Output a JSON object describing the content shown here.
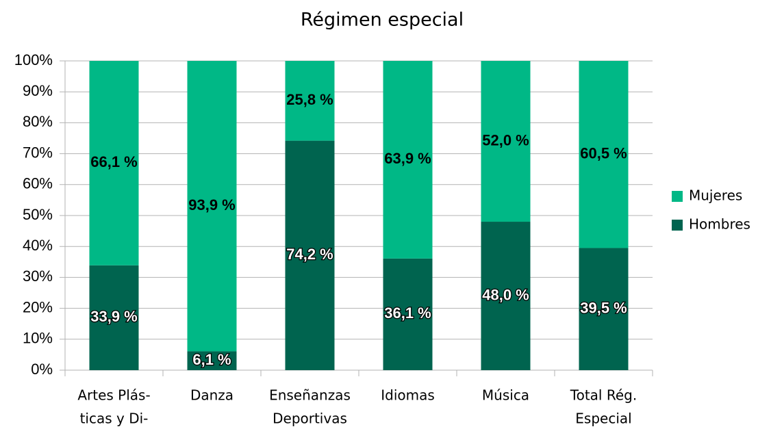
{
  "chart_data": {
    "type": "stacked_bar",
    "title": "Régimen especial",
    "categories": [
      [
        "Artes Plás-",
        "ticas y Di-"
      ],
      [
        "Danza"
      ],
      [
        "Enseñanzas",
        "Deportivas"
      ],
      [
        "Idiomas"
      ],
      [
        "Música"
      ],
      [
        "Total Rég.",
        "Especial"
      ]
    ],
    "series": [
      {
        "name": "Hombres",
        "color": "#00644f",
        "values": [
          33.9,
          6.1,
          74.2,
          36.1,
          48.0,
          39.5
        ],
        "value_labels": [
          "33,9 %",
          "6,1 %",
          "74,2 %",
          "36,1 %",
          "48,0 %",
          "39,5 %"
        ]
      },
      {
        "name": "Mujeres",
        "color": "#00b886",
        "values": [
          66.1,
          93.9,
          25.8,
          63.9,
          52.0,
          60.5
        ],
        "value_labels": [
          "66,1 %",
          "93,9 %",
          "25,8 %",
          "63,9 %",
          "52,0 %",
          "60,5 %"
        ]
      }
    ],
    "ylim": [
      0,
      100
    ],
    "yticks": [
      {
        "value": 0,
        "label": "0%"
      },
      {
        "value": 10,
        "label": "10%"
      },
      {
        "value": 20,
        "label": "20%"
      },
      {
        "value": 30,
        "label": "30%"
      },
      {
        "value": 40,
        "label": "40%"
      },
      {
        "value": 50,
        "label": "50%"
      },
      {
        "value": 60,
        "label": "60%"
      },
      {
        "value": 70,
        "label": "70%"
      },
      {
        "value": 80,
        "label": "80%"
      },
      {
        "value": 90,
        "label": "90%"
      },
      {
        "value": 100,
        "label": "100%"
      }
    ],
    "grid": true,
    "legend": "right"
  }
}
